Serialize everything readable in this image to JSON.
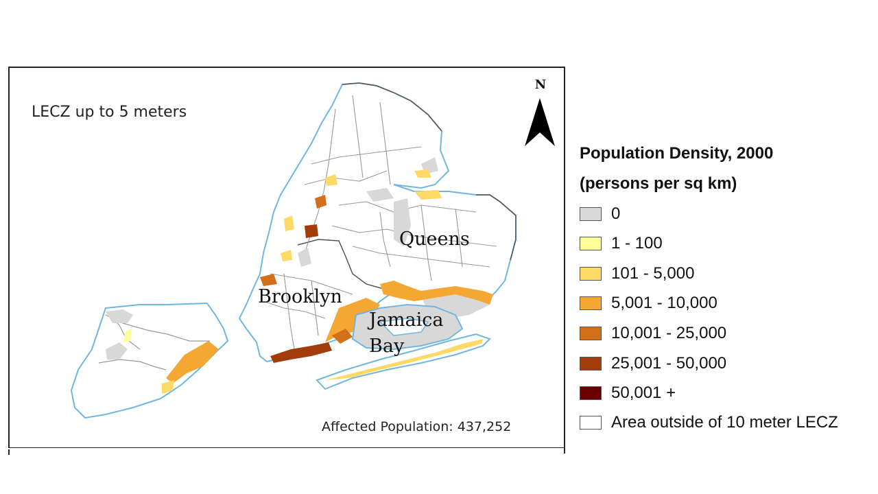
{
  "map": {
    "title": "LECZ up to 5 meters",
    "north_label": "N",
    "affected_population": "Affected Population: 437,252",
    "places": {
      "queens": "Queens",
      "brooklyn": "Brooklyn",
      "jamaica": "Jamaica",
      "bay": "Bay"
    },
    "colors": {
      "boundary": "#888888",
      "coast": "#6fb6e0",
      "zero": "#d8d8d8"
    }
  },
  "legend": {
    "title_line1": "Population Density, 2000",
    "title_line2": "(persons per sq km)",
    "items": [
      {
        "label": "0",
        "color": "#dadada"
      },
      {
        "label": "1 - 100",
        "color": "#ffff99"
      },
      {
        "label": "101 - 5,000",
        "color": "#fed966"
      },
      {
        "label": "5,001 - 10,000",
        "color": "#f5a733"
      },
      {
        "label": "10,001 - 25,000",
        "color": "#d27019"
      },
      {
        "label": "25,001 - 50,000",
        "color": "#a23c0b"
      },
      {
        "label": "50,001 +",
        "color": "#6b0000"
      },
      {
        "label": "Area outside of 10 meter LECZ",
        "color": "#ffffff"
      }
    ]
  }
}
